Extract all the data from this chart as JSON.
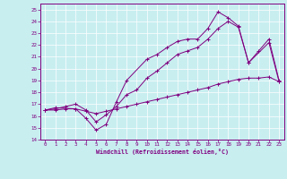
{
  "xlabel": "Windchill (Refroidissement éolien,°C)",
  "ylabel": "",
  "xlim": [
    -0.5,
    23.5
  ],
  "ylim": [
    14,
    25.5
  ],
  "xticks": [
    0,
    1,
    2,
    3,
    4,
    5,
    6,
    7,
    8,
    9,
    10,
    11,
    12,
    13,
    14,
    15,
    16,
    17,
    18,
    19,
    20,
    21,
    22,
    23
  ],
  "yticks": [
    14,
    15,
    16,
    17,
    18,
    19,
    20,
    21,
    22,
    23,
    24,
    25
  ],
  "bg_color": "#c8eef0",
  "line_color": "#800080",
  "line1_x": [
    0,
    1,
    3,
    4,
    5,
    6,
    7,
    8,
    10,
    11,
    12,
    13,
    14,
    15,
    16,
    17,
    18,
    19,
    20,
    22,
    23
  ],
  "line1_y": [
    16.5,
    16.7,
    16.6,
    15.8,
    14.8,
    15.3,
    17.2,
    19.0,
    20.8,
    21.2,
    21.8,
    22.3,
    22.5,
    22.5,
    23.4,
    24.8,
    24.3,
    23.6,
    20.5,
    22.2,
    18.9
  ],
  "line2_x": [
    0,
    1,
    2,
    3,
    4,
    5,
    6,
    7,
    8,
    9,
    10,
    11,
    12,
    13,
    14,
    15,
    16,
    17,
    18,
    19,
    20,
    21,
    22,
    23
  ],
  "line2_y": [
    16.5,
    16.6,
    16.8,
    17.0,
    16.5,
    15.5,
    16.1,
    16.8,
    17.8,
    18.2,
    19.2,
    19.8,
    20.5,
    21.2,
    21.5,
    21.8,
    22.5,
    23.4,
    24.0,
    23.5,
    20.5,
    21.5,
    22.5,
    19.0
  ],
  "line3_x": [
    0,
    1,
    2,
    3,
    4,
    5,
    6,
    7,
    8,
    9,
    10,
    11,
    12,
    13,
    14,
    15,
    16,
    17,
    18,
    19,
    20,
    21,
    22,
    23
  ],
  "line3_y": [
    16.5,
    16.5,
    16.6,
    16.6,
    16.4,
    16.2,
    16.4,
    16.6,
    16.8,
    17.0,
    17.2,
    17.4,
    17.6,
    17.8,
    18.0,
    18.2,
    18.4,
    18.7,
    18.9,
    19.1,
    19.2,
    19.2,
    19.3,
    18.9
  ]
}
